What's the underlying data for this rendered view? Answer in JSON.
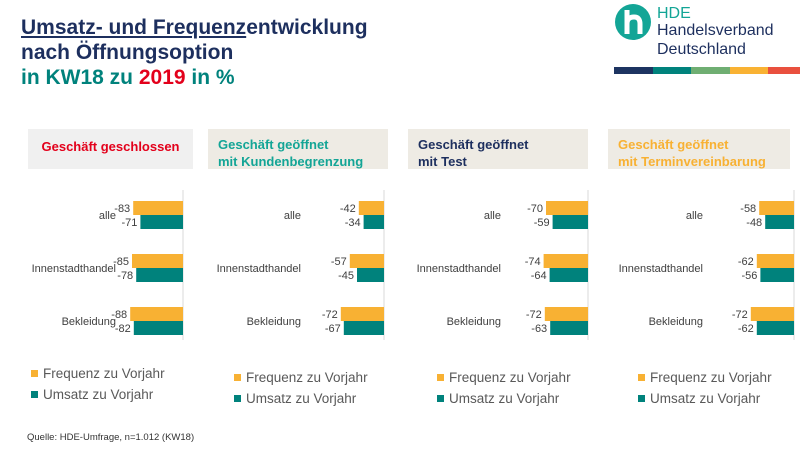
{
  "title": {
    "line1_underlined": "Umsatz- und Frequenz",
    "line1_rest": "entwicklung",
    "line2": "nach Öffnungsoption",
    "line3_pre": "in KW18 zu ",
    "line3_year": "2019",
    "line3_post": " in %"
  },
  "logo": {
    "abbr": "HDE",
    "name_line1": "Handelsverband",
    "name_line2": "Deutschland",
    "stripe_colors": [
      "#1d3461",
      "#00827c",
      "#6fae72",
      "#f9b233",
      "#e9503e"
    ]
  },
  "colors": {
    "frequenz": "#f8b133",
    "umsatz": "#00827c"
  },
  "legend": {
    "frequenz": "Frequenz zu Vorjahr",
    "umsatz": "Umsatz zu Vorjahr"
  },
  "source": "Quelle: HDE-Umfrage, n=1.012  (KW18)",
  "chart_data": [
    {
      "type": "bar",
      "orientation": "horizontal",
      "title": "Geschäft geschlossen",
      "title_color": "#e3001b",
      "categories": [
        "alle",
        "Innenstadthandel",
        "Bekleidung"
      ],
      "series": [
        {
          "name": "Frequenz zu Vorjahr",
          "values": [
            -83,
            -85,
            -88
          ]
        },
        {
          "name": "Umsatz zu Vorjahr",
          "values": [
            -71,
            -78,
            -82
          ]
        }
      ],
      "xlim": [
        -100,
        0
      ],
      "legend": "bottom"
    },
    {
      "type": "bar",
      "orientation": "horizontal",
      "title": "Geschäft geöffnet\nmit Kundenbegrenzung",
      "title_color": "#13a596",
      "categories": [
        "alle",
        "Innenstadthandel",
        "Bekleidung"
      ],
      "series": [
        {
          "name": "Frequenz zu Vorjahr",
          "values": [
            -42,
            -57,
            -72
          ]
        },
        {
          "name": "Umsatz zu Vorjahr",
          "values": [
            -34,
            -45,
            -67
          ]
        }
      ],
      "xlim": [
        -100,
        0
      ],
      "legend": "bottom"
    },
    {
      "type": "bar",
      "orientation": "horizontal",
      "title": "Geschäft geöffnet\nmit Test",
      "title_color": "#1d2f5e",
      "categories": [
        "alle",
        "Innenstadthandel",
        "Bekleidung"
      ],
      "series": [
        {
          "name": "Frequenz zu Vorjahr",
          "values": [
            -70,
            -74,
            -72
          ]
        },
        {
          "name": "Umsatz zu Vorjahr",
          "values": [
            -59,
            -64,
            -63
          ]
        }
      ],
      "xlim": [
        -100,
        0
      ],
      "legend": "bottom"
    },
    {
      "type": "bar",
      "orientation": "horizontal",
      "title": "Geschäft geöffnet\nmit Terminvereinbarung",
      "title_color": "#f8b133",
      "categories": [
        "alle",
        "Innenstadthandel",
        "Bekleidung"
      ],
      "series": [
        {
          "name": "Frequenz zu Vorjahr",
          "values": [
            -58,
            -62,
            -72
          ]
        },
        {
          "name": "Umsatz zu Vorjahr",
          "values": [
            -48,
            -56,
            -62
          ]
        }
      ],
      "xlim": [
        -100,
        0
      ],
      "legend": "bottom"
    }
  ]
}
